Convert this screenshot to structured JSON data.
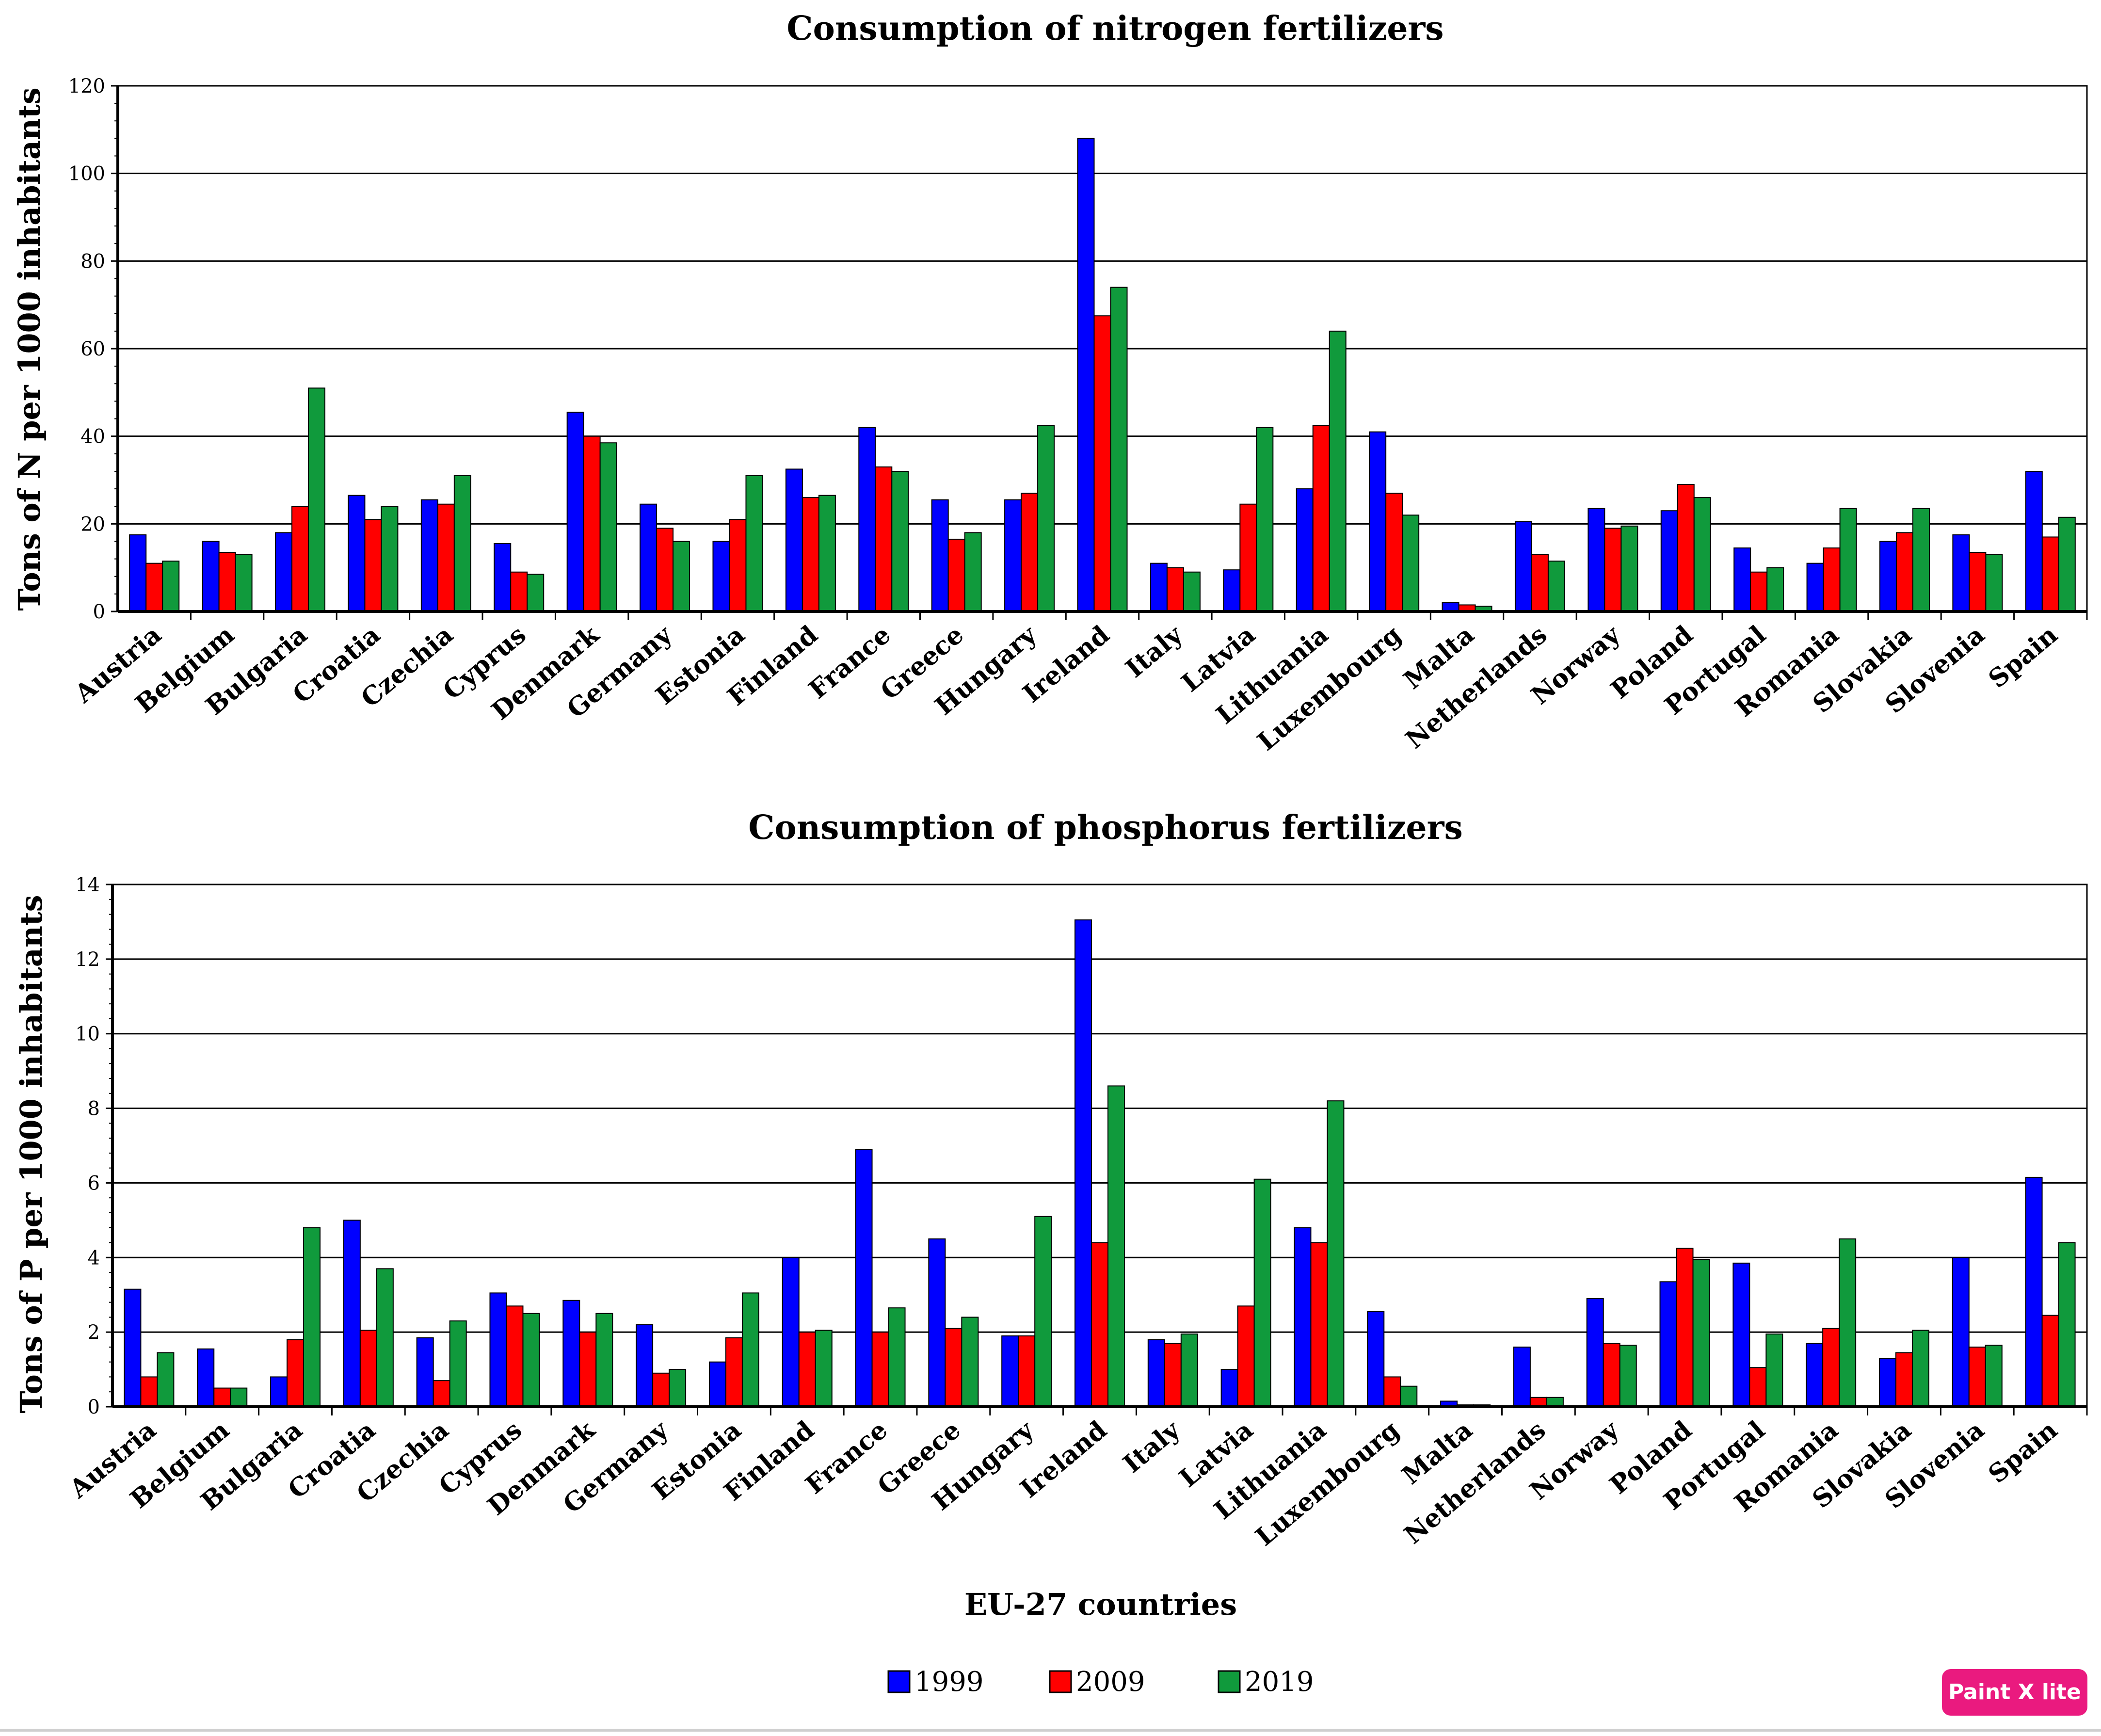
{
  "countries": [
    "Austria",
    "Belgium",
    "Bulgaria",
    "Croatia",
    "Czechia",
    "Cyprus",
    "Denmark",
    "Germany",
    "Estonia",
    "Finland",
    "France",
    "Greece",
    "Hungary",
    "Ireland",
    "Italy",
    "Latvia",
    "Lithuania",
    "Luxembourg",
    "Malta",
    "Netherlands",
    "Norway",
    "Poland",
    "Portugal",
    "Romania",
    "Slovakia",
    "Slovenia",
    "Spain"
  ],
  "colors": {
    "1999": "#0000ff",
    "2009": "#ff0000",
    "2019": "#109a3c",
    "grid": "#000000"
  },
  "chart_data": [
    {
      "type": "bar",
      "title": "Consumption of nitrogen fertilizers",
      "xlabel": "",
      "ylabel": "Tons of N per 1000 inhabitants",
      "ylim": [
        0,
        120
      ],
      "yticks": [
        0,
        20,
        40,
        60,
        80,
        100,
        120
      ],
      "grid": true,
      "series": [
        {
          "name": "1999",
          "values": [
            17.5,
            16,
            18,
            26.5,
            25.5,
            15.5,
            45.5,
            24.5,
            16,
            32.5,
            42,
            25.5,
            25.5,
            108,
            11,
            9.5,
            28,
            41,
            2,
            20.5,
            23.5,
            23,
            14.5,
            11,
            16,
            17.5,
            32
          ]
        },
        {
          "name": "2009",
          "values": [
            11,
            13.5,
            24,
            21,
            24.5,
            9,
            40,
            19,
            21,
            26,
            33,
            16.5,
            27,
            67.5,
            10,
            24.5,
            42.5,
            27,
            1.5,
            13,
            19,
            29,
            9,
            14.5,
            18,
            13.5,
            17
          ]
        },
        {
          "name": "2019",
          "values": [
            11.5,
            13,
            51,
            24,
            31,
            8.5,
            38.5,
            16,
            31,
            26.5,
            32,
            18,
            42.5,
            74,
            9,
            42,
            64,
            22,
            1.2,
            11.5,
            19.5,
            26,
            10,
            23.5,
            23.5,
            13,
            21.5
          ]
        }
      ]
    },
    {
      "type": "bar",
      "title": "Consumption of phosphorus fertilizers",
      "xlabel": "EU-27 countries",
      "ylabel": "Tons of P per 1000 inhabitants",
      "ylim": [
        0,
        14
      ],
      "yticks": [
        0,
        2,
        4,
        6,
        8,
        10,
        12,
        14
      ],
      "grid": true,
      "series": [
        {
          "name": "1999",
          "values": [
            3.15,
            1.55,
            0.8,
            5,
            1.85,
            3.05,
            2.85,
            2.2,
            1.2,
            4,
            6.9,
            4.5,
            1.9,
            13.05,
            1.8,
            1,
            4.8,
            2.55,
            0.15,
            1.6,
            2.9,
            3.35,
            3.85,
            1.7,
            1.3,
            4,
            6.15
          ]
        },
        {
          "name": "2009",
          "values": [
            0.8,
            0.5,
            1.8,
            2.05,
            0.7,
            2.7,
            2,
            0.9,
            1.85,
            2,
            2,
            2.1,
            1.9,
            4.4,
            1.7,
            2.7,
            4.4,
            0.8,
            0.05,
            0.25,
            1.7,
            4.25,
            1.05,
            2.1,
            1.45,
            1.6,
            2.45
          ]
        },
        {
          "name": "2019",
          "values": [
            1.45,
            0.5,
            4.8,
            3.7,
            2.3,
            2.5,
            2.5,
            1,
            3.05,
            2.05,
            2.65,
            2.4,
            5.1,
            8.6,
            1.95,
            6.1,
            8.2,
            0.55,
            0.05,
            0.25,
            1.65,
            3.95,
            1.95,
            4.5,
            2.05,
            1.65,
            4.4
          ]
        }
      ]
    }
  ],
  "legend": {
    "items": [
      "1999",
      "2009",
      "2019"
    ],
    "position": "bottom-center"
  },
  "watermark": "Paint X lite"
}
